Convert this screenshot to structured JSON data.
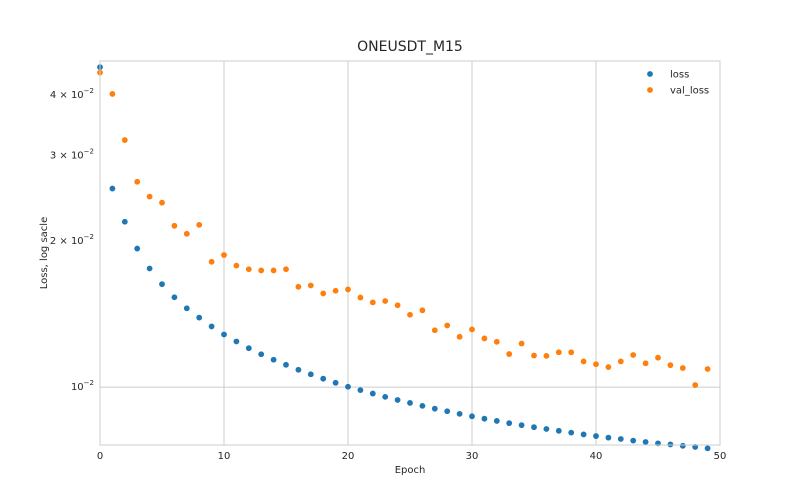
{
  "chart_data": {
    "type": "scatter",
    "title": "ONEUSDT_M15",
    "xlabel": "Epoch",
    "ylabel": "Loss, log sacle",
    "yscale": "log",
    "xlim": [
      0,
      50
    ],
    "ylim": [
      0.0076,
      0.047
    ],
    "x_ticks": [
      0,
      10,
      20,
      30,
      40,
      50
    ],
    "x_tick_labels": [
      "0",
      "10",
      "20",
      "30",
      "40",
      "50"
    ],
    "y_ticks": [
      0.01,
      0.02,
      0.03,
      0.04
    ],
    "y_tick_labels": [
      {
        "base": "10",
        "exp": "−2",
        "mult": ""
      },
      {
        "base": "10",
        "exp": "−2",
        "mult": "2 × "
      },
      {
        "base": "10",
        "exp": "−2",
        "mult": "3 × "
      },
      {
        "base": "10",
        "exp": "−2",
        "mult": "4 × "
      }
    ],
    "grid": true,
    "legend_position": "top-right",
    "x": [
      0,
      1,
      2,
      3,
      4,
      5,
      6,
      7,
      8,
      9,
      10,
      11,
      12,
      13,
      14,
      15,
      16,
      17,
      18,
      19,
      20,
      21,
      22,
      23,
      24,
      25,
      26,
      27,
      28,
      29,
      30,
      31,
      32,
      33,
      34,
      35,
      36,
      37,
      38,
      39,
      40,
      41,
      42,
      43,
      44,
      45,
      46,
      47,
      48,
      49
    ],
    "series": [
      {
        "name": "loss",
        "color": "#1f77b4",
        "values": [
          0.04566,
          0.02566,
          0.02192,
          0.0193,
          0.01756,
          0.0163,
          0.01532,
          0.01454,
          0.01391,
          0.01334,
          0.01284,
          0.01242,
          0.01203,
          0.01169,
          0.01139,
          0.01112,
          0.01086,
          0.01063,
          0.01041,
          0.01021,
          0.01002,
          0.00986,
          0.0097,
          0.00955,
          0.00941,
          0.00928,
          0.00915,
          0.00903,
          0.00892,
          0.00881,
          0.00871,
          0.00861,
          0.00852,
          0.00843,
          0.00835,
          0.00827,
          0.0082,
          0.00813,
          0.00806,
          0.00799,
          0.00793,
          0.00787,
          0.00782,
          0.00776,
          0.00771,
          0.00766,
          0.00762,
          0.00757,
          0.00753,
          0.00748
        ]
      },
      {
        "name": "val_loss",
        "color": "#ff7f0e",
        "values": [
          0.0445,
          0.0402,
          0.0323,
          0.0265,
          0.0247,
          0.024,
          0.0215,
          0.0207,
          0.0216,
          0.01813,
          0.01872,
          0.0178,
          0.0175,
          0.0174,
          0.0174,
          0.0175,
          0.0161,
          0.0162,
          0.0156,
          0.0158,
          0.0159,
          0.0153,
          0.01495,
          0.01505,
          0.01475,
          0.0141,
          0.0144,
          0.0131,
          0.0134,
          0.0127,
          0.01315,
          0.0126,
          0.0124,
          0.0117,
          0.0123,
          0.01162,
          0.0116,
          0.0118,
          0.0118,
          0.0113,
          0.01115,
          0.011,
          0.0113,
          0.01165,
          0.0112,
          0.0115,
          0.0111,
          0.01095,
          0.0101,
          0.0109
        ]
      }
    ]
  }
}
